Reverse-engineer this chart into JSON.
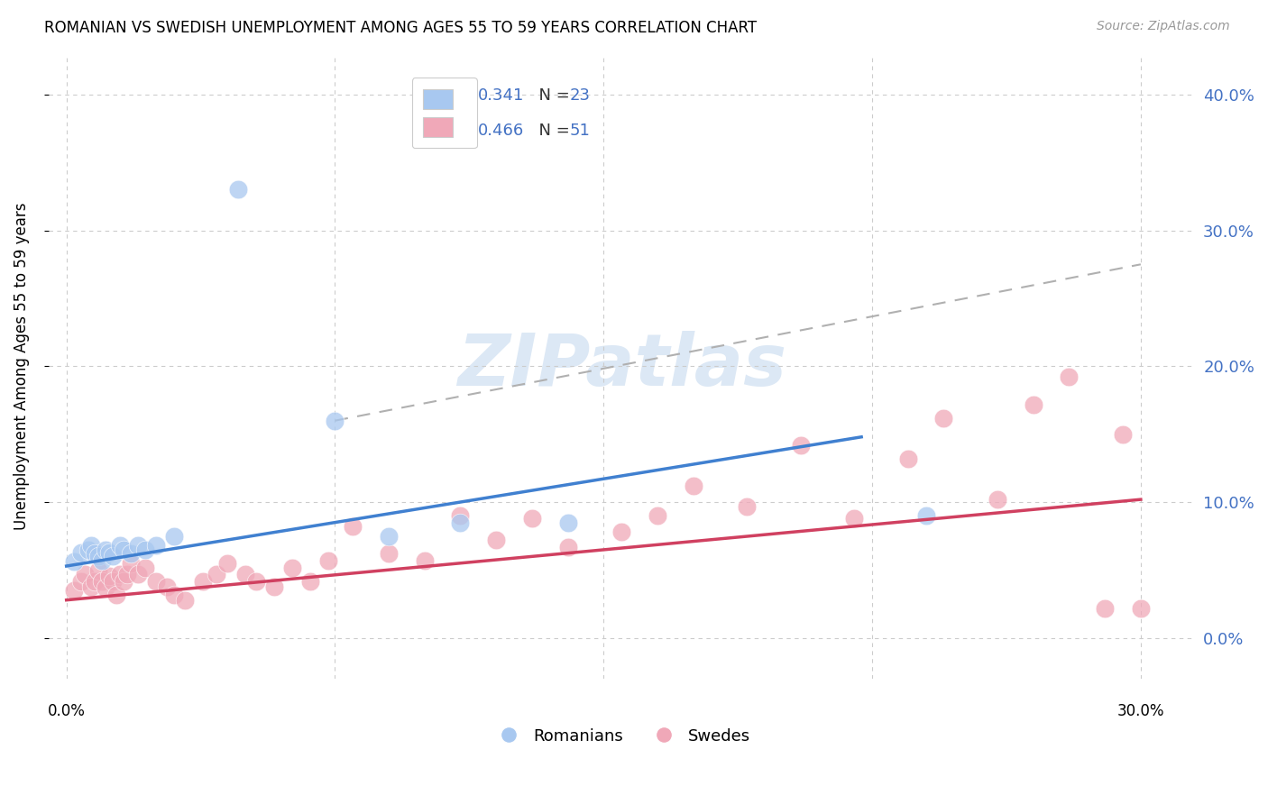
{
  "title": "ROMANIAN VS SWEDISH UNEMPLOYMENT AMONG AGES 55 TO 59 YEARS CORRELATION CHART",
  "source": "Source: ZipAtlas.com",
  "ylabel": "Unemployment Among Ages 55 to 59 years",
  "blue_color": "#a8c8f0",
  "pink_color": "#f0a8b8",
  "blue_line_color": "#4080d0",
  "pink_line_color": "#d04060",
  "dashed_line_color": "#b0b0b0",
  "watermark_color": "#dce8f5",
  "background_color": "#ffffff",
  "grid_color": "#cccccc",
  "right_label_color": "#4472c4",
  "legend_text_color": "#333333",
  "legend_value_color": "#4472c4",
  "xlim": [
    -0.005,
    0.315
  ],
  "ylim": [
    -0.03,
    0.43
  ],
  "yticks": [
    0.0,
    0.1,
    0.2,
    0.3,
    0.4
  ],
  "ytick_labels": [
    "0.0%",
    "10.0%",
    "20.0%",
    "30.0%",
    "40.0%"
  ],
  "xticks": [
    0.0,
    0.075,
    0.15,
    0.225,
    0.3
  ],
  "rom_x": [
    0.002,
    0.004,
    0.006,
    0.007,
    0.008,
    0.009,
    0.01,
    0.011,
    0.012,
    0.013,
    0.015,
    0.016,
    0.018,
    0.02,
    0.022,
    0.025,
    0.03,
    0.048,
    0.075,
    0.09,
    0.11,
    0.14,
    0.24
  ],
  "rom_y": [
    0.056,
    0.063,
    0.065,
    0.068,
    0.062,
    0.06,
    0.057,
    0.065,
    0.063,
    0.06,
    0.068,
    0.065,
    0.062,
    0.068,
    0.065,
    0.068,
    0.075,
    0.33,
    0.16,
    0.075,
    0.085,
    0.085,
    0.09
  ],
  "swe_x": [
    0.002,
    0.004,
    0.005,
    0.007,
    0.008,
    0.009,
    0.01,
    0.011,
    0.012,
    0.013,
    0.014,
    0.015,
    0.016,
    0.017,
    0.018,
    0.02,
    0.022,
    0.025,
    0.028,
    0.03,
    0.033,
    0.038,
    0.042,
    0.045,
    0.05,
    0.053,
    0.058,
    0.063,
    0.068,
    0.073,
    0.08,
    0.09,
    0.1,
    0.11,
    0.12,
    0.13,
    0.14,
    0.155,
    0.165,
    0.175,
    0.19,
    0.205,
    0.22,
    0.235,
    0.245,
    0.26,
    0.27,
    0.28,
    0.29,
    0.3,
    0.295
  ],
  "swe_y": [
    0.035,
    0.042,
    0.047,
    0.038,
    0.042,
    0.05,
    0.042,
    0.037,
    0.046,
    0.042,
    0.032,
    0.047,
    0.042,
    0.047,
    0.055,
    0.047,
    0.052,
    0.042,
    0.038,
    0.032,
    0.028,
    0.042,
    0.047,
    0.055,
    0.047,
    0.042,
    0.038,
    0.052,
    0.042,
    0.057,
    0.082,
    0.062,
    0.057,
    0.09,
    0.072,
    0.088,
    0.067,
    0.078,
    0.09,
    0.112,
    0.097,
    0.142,
    0.088,
    0.132,
    0.162,
    0.102,
    0.172,
    0.192,
    0.022,
    0.022,
    0.15
  ],
  "blue_line_x": [
    0.0,
    0.222
  ],
  "blue_line_y": [
    0.053,
    0.148
  ],
  "pink_line_x": [
    0.0,
    0.3
  ],
  "pink_line_y": [
    0.028,
    0.102
  ],
  "dash_line_x": [
    0.075,
    0.3
  ],
  "dash_line_y": [
    0.16,
    0.275
  ]
}
